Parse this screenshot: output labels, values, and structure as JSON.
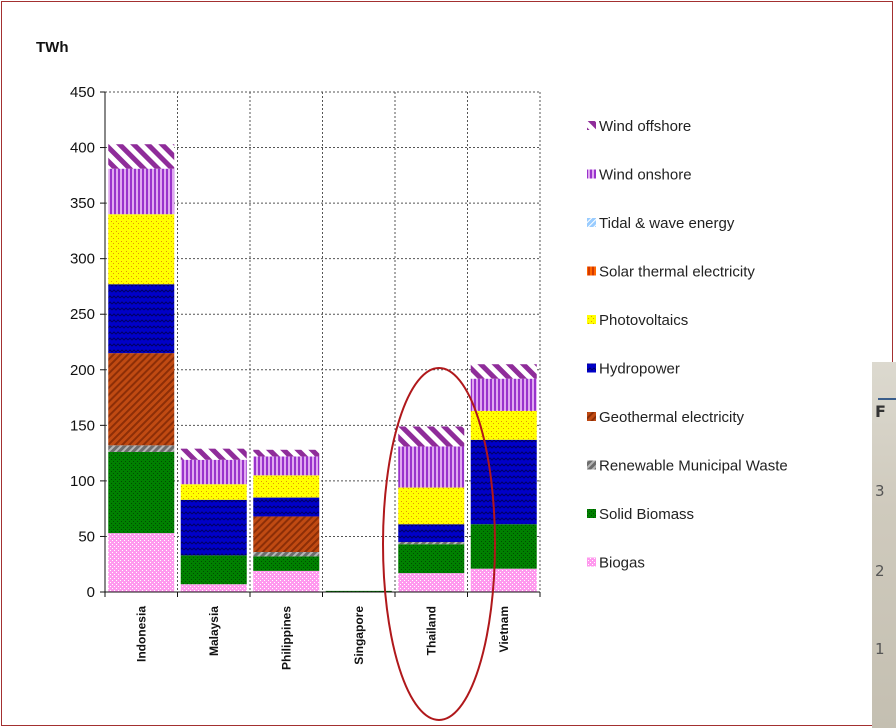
{
  "chart_data": {
    "type": "bar",
    "stacked": true,
    "ylabel": "TWh",
    "ylim": [
      0,
      450
    ],
    "yticks": [
      0,
      50,
      100,
      150,
      200,
      250,
      300,
      350,
      400,
      450
    ],
    "grid": true,
    "legend_position": "right",
    "categories": [
      "Indonesia",
      "Malaysia",
      "Philippines",
      "Singapore",
      "Thailand",
      "Vietnam"
    ],
    "series": [
      {
        "name": "Biogas",
        "color": "#ff99ee",
        "values": [
          53,
          7,
          19,
          0,
          17,
          21
        ]
      },
      {
        "name": "Solid Biomass",
        "color": "#008000",
        "values": [
          73,
          26,
          13,
          1,
          26,
          40
        ]
      },
      {
        "name": "Renewable Municipal Waste",
        "color": "#6d6d6d",
        "values": [
          6,
          0,
          4,
          0,
          2,
          0
        ]
      },
      {
        "name": "Geothermal electricity",
        "color": "#c04a12",
        "values": [
          83,
          0,
          32,
          0,
          0,
          0
        ]
      },
      {
        "name": "Hydropower",
        "color": "#0000c8",
        "values": [
          62,
          50,
          17,
          0,
          16,
          76
        ]
      },
      {
        "name": "Photovoltaics",
        "color": "#ffff00",
        "values": [
          63,
          14,
          20,
          0,
          33,
          26
        ]
      },
      {
        "name": "Solar thermal electricity",
        "color": "#ff6600",
        "values": [
          0,
          0,
          0,
          0,
          0,
          0
        ]
      },
      {
        "name": "Tidal & wave energy",
        "color": "#99ccff",
        "values": [
          0,
          0,
          0,
          0,
          0,
          0
        ]
      },
      {
        "name": "Wind onshore",
        "color": "#9933cc",
        "values": [
          41,
          22,
          17,
          0,
          37,
          29
        ]
      },
      {
        "name": "Wind offshore",
        "color": "#8f2c9a",
        "values": [
          22,
          10,
          6,
          0,
          18,
          13
        ]
      }
    ],
    "legend_order": [
      "Wind offshore",
      "Wind onshore",
      "Tidal & wave energy",
      "Solar thermal electricity",
      "Photovoltaics",
      "Hydropower",
      "Geothermal electricity",
      "Renewable Municipal Waste",
      "Solid Biomass",
      "Biogas"
    ],
    "annotation": {
      "type": "ellipse",
      "target": "Thailand",
      "color": "#b0181b"
    }
  },
  "inset": {
    "glyphs": [
      "F",
      "3",
      "2",
      "1"
    ]
  }
}
